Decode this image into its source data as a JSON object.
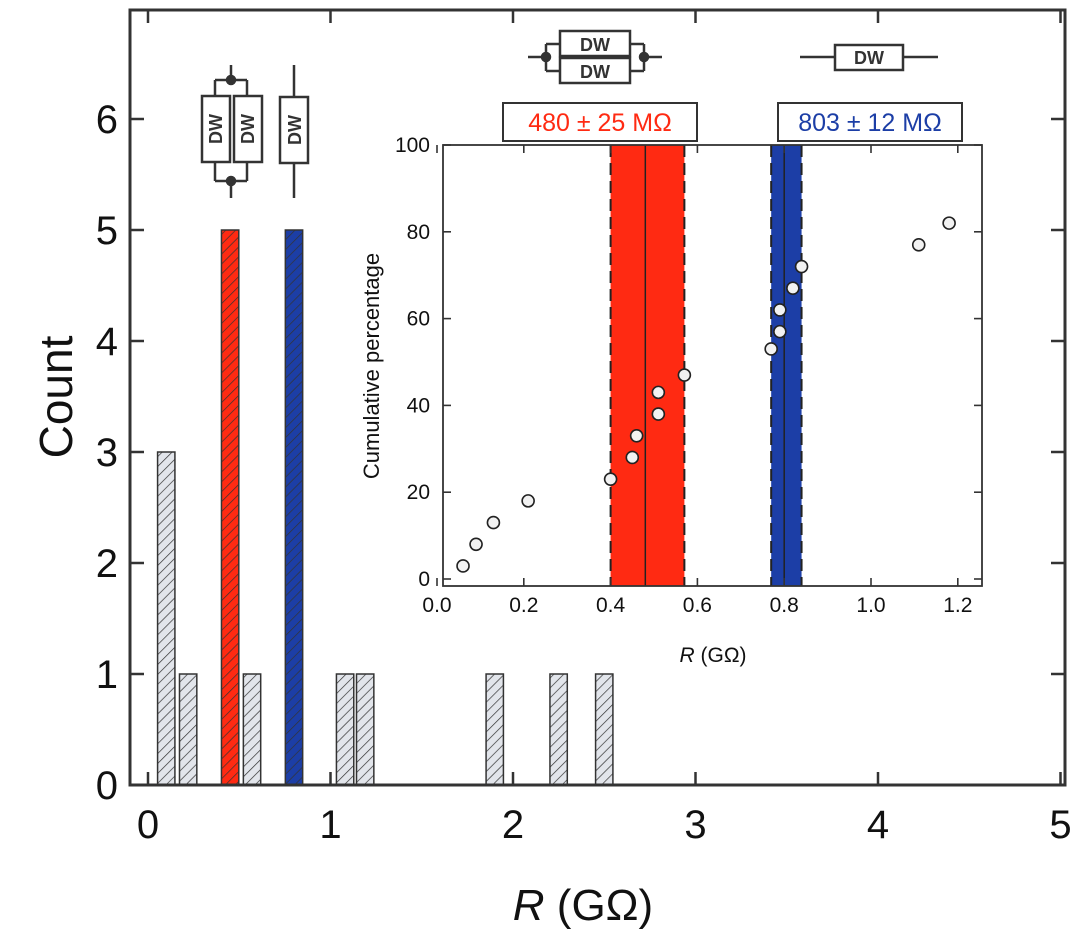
{
  "chart_data": [
    {
      "type": "bar",
      "role": "main-histogram",
      "xlabel_italic": "R",
      "xlabel_unit": " (GΩ)",
      "ylabel": "Count",
      "xlim": [
        0,
        5
      ],
      "ylim": [
        0,
        7
      ],
      "xticks": [
        "0",
        "1",
        "2",
        "3",
        "4",
        "5"
      ],
      "yticks": [
        "0",
        "1",
        "2",
        "3",
        "4",
        "5",
        "6"
      ],
      "bin_width": 0.1,
      "bars": [
        {
          "center": 0.1,
          "value": 3,
          "group": "other"
        },
        {
          "center": 0.22,
          "value": 1,
          "group": "other"
        },
        {
          "center": 0.45,
          "value": 5,
          "group": "double"
        },
        {
          "center": 0.57,
          "value": 1,
          "group": "other"
        },
        {
          "center": 0.8,
          "value": 5,
          "group": "single"
        },
        {
          "center": 1.08,
          "value": 1,
          "group": "other"
        },
        {
          "center": 1.19,
          "value": 1,
          "group": "other"
        },
        {
          "center": 1.9,
          "value": 1,
          "group": "other"
        },
        {
          "center": 2.25,
          "value": 1,
          "group": "other"
        },
        {
          "center": 2.5,
          "value": 1,
          "group": "other"
        }
      ]
    },
    {
      "type": "scatter",
      "role": "inset-cumulative",
      "xlabel_italic": "R",
      "xlabel_unit": " (GΩ)",
      "ylabel": "Cumulative percentage",
      "xlim": [
        0,
        1.25
      ],
      "ylim": [
        0,
        100
      ],
      "xticks": [
        "0.0",
        "0.2",
        "0.4",
        "0.6",
        "0.8",
        "1.0",
        "1.2"
      ],
      "yticks": [
        "0",
        "20",
        "40",
        "60",
        "80",
        "100"
      ],
      "points": [
        {
          "x": 0.06,
          "y": 3
        },
        {
          "x": 0.09,
          "y": 8
        },
        {
          "x": 0.13,
          "y": 13
        },
        {
          "x": 0.21,
          "y": 18
        },
        {
          "x": 0.4,
          "y": 23
        },
        {
          "x": 0.45,
          "y": 28
        },
        {
          "x": 0.46,
          "y": 33
        },
        {
          "x": 0.51,
          "y": 38
        },
        {
          "x": 0.51,
          "y": 43
        },
        {
          "x": 0.57,
          "y": 47
        },
        {
          "x": 0.77,
          "y": 53
        },
        {
          "x": 0.79,
          "y": 57
        },
        {
          "x": 0.79,
          "y": 62
        },
        {
          "x": 0.82,
          "y": 67
        },
        {
          "x": 0.84,
          "y": 72
        },
        {
          "x": 1.11,
          "y": 77
        },
        {
          "x": 1.18,
          "y": 82
        }
      ],
      "bands": [
        {
          "name": "double",
          "center": 0.48,
          "lo": 0.4,
          "hi": 0.57,
          "label": "480 ± 25 MΩ"
        },
        {
          "name": "single",
          "center": 0.8,
          "lo": 0.77,
          "hi": 0.84,
          "label": "803 ± 12 MΩ"
        }
      ]
    }
  ],
  "colors": {
    "double": "#ff2a12",
    "single": "#1c3ea6",
    "other": "#e2e5eb",
    "axis": "#333333"
  },
  "schematics": {
    "resistor_label": "DW"
  }
}
